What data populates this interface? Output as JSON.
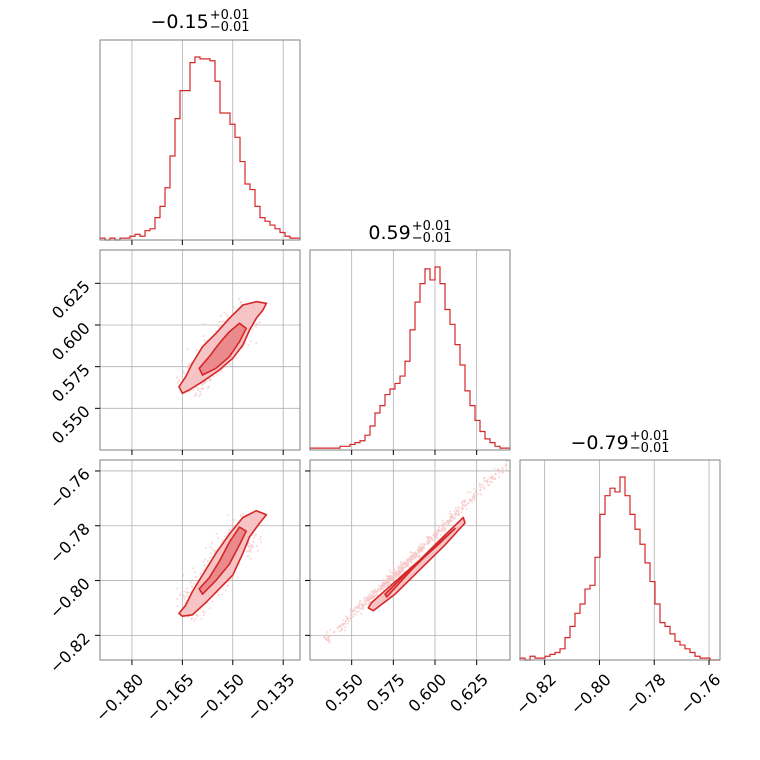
{
  "colors": {
    "main": "#d62728",
    "grid": "#b0b0b0",
    "frame": "#808080",
    "fill_light": "#f6c4c5",
    "fill_mid": "#eb8a8c"
  },
  "chart_data": {
    "type": "corner",
    "parameters": [
      {
        "median": "−0.15",
        "plus": "+0.01",
        "minus": "−0.01",
        "range": [
          -0.1895,
          -0.13
        ],
        "ticks": [
          -0.18,
          -0.165,
          -0.15,
          -0.135
        ],
        "tick_labels": [
          "−0.180",
          "−0.165",
          "−0.150",
          "−0.135"
        ]
      },
      {
        "median": "0.59",
        "plus": "+0.01",
        "minus": "−0.01",
        "range": [
          0.525,
          0.645
        ],
        "ticks": [
          0.55,
          0.575,
          0.6,
          0.625
        ],
        "tick_labels": [
          "0.550",
          "0.575",
          "0.600",
          "0.625"
        ]
      },
      {
        "median": "−0.79",
        "plus": "+0.01",
        "minus": "−0.01",
        "range": [
          -0.829,
          -0.756
        ],
        "ticks": [
          -0.82,
          -0.8,
          -0.78,
          -0.76
        ],
        "tick_labels": [
          "−0.82",
          "−0.80",
          "−0.78",
          "−0.76"
        ]
      }
    ],
    "histograms": [
      {
        "param": 0,
        "counts": [
          1,
          0,
          1,
          0,
          1,
          1,
          2,
          3,
          2,
          5,
          6,
          12,
          18,
          28,
          45,
          65,
          80,
          80,
          95,
          98,
          97,
          97,
          96,
          85,
          68,
          68,
          62,
          55,
          42,
          30,
          27,
          18,
          12,
          10,
          8,
          6,
          4,
          2,
          1,
          1
        ]
      },
      {
        "param": 1,
        "counts": [
          1,
          1,
          1,
          1,
          1,
          1,
          2,
          2,
          3,
          4,
          5,
          8,
          13,
          20,
          24,
          30,
          33,
          36,
          40,
          48,
          65,
          80,
          90,
          98,
          92,
          99,
          90,
          76,
          68,
          57,
          46,
          32,
          24,
          16,
          10,
          6,
          4,
          2,
          1,
          1
        ]
      },
      {
        "param": 2,
        "counts": [
          1,
          0,
          2,
          1,
          1,
          2,
          3,
          4,
          6,
          12,
          18,
          25,
          30,
          38,
          40,
          55,
          78,
          88,
          92,
          90,
          98,
          88,
          78,
          70,
          62,
          52,
          42,
          30,
          20,
          18,
          14,
          10,
          8,
          6,
          4,
          2,
          1,
          1,
          0,
          0
        ]
      }
    ],
    "scatter_2d": [
      {
        "x_param": 0,
        "y_param": 1,
        "ridge": [
          [
            -0.1635,
            0.561
          ],
          [
            -0.1545,
            0.583
          ],
          [
            -0.1445,
            0.61
          ]
        ],
        "widths": [
          0.005,
          0.007,
          0.008
        ],
        "outer_contour": [
          [
            -0.165,
            0.559
          ],
          [
            -0.163,
            0.561
          ],
          [
            -0.159,
            0.566
          ],
          [
            -0.154,
            0.573
          ],
          [
            -0.15,
            0.58
          ],
          [
            -0.147,
            0.588
          ],
          [
            -0.145,
            0.597
          ],
          [
            -0.143,
            0.604
          ],
          [
            -0.141,
            0.609
          ],
          [
            -0.14,
            0.613
          ],
          [
            -0.143,
            0.614
          ],
          [
            -0.147,
            0.612
          ],
          [
            -0.151,
            0.604
          ],
          [
            -0.155,
            0.595
          ],
          [
            -0.159,
            0.587
          ],
          [
            -0.162,
            0.577
          ],
          [
            -0.164,
            0.569
          ],
          [
            -0.166,
            0.563
          ]
        ],
        "inner_contour": [
          [
            -0.159,
            0.57
          ],
          [
            -0.155,
            0.574
          ],
          [
            -0.151,
            0.581
          ],
          [
            -0.148,
            0.59
          ],
          [
            -0.146,
            0.598
          ],
          [
            -0.148,
            0.601
          ],
          [
            -0.151,
            0.596
          ],
          [
            -0.154,
            0.589
          ],
          [
            -0.157,
            0.581
          ],
          [
            -0.16,
            0.574
          ]
        ]
      },
      {
        "x_param": 0,
        "y_param": 2,
        "ridge": [
          [
            -0.1645,
            -0.812
          ],
          [
            -0.154,
            -0.796
          ],
          [
            -0.144,
            -0.778
          ]
        ],
        "widths": [
          0.005,
          0.007,
          0.008
        ],
        "outer_contour": [
          [
            -0.165,
            -0.813
          ],
          [
            -0.162,
            -0.8125
          ],
          [
            -0.158,
            -0.808
          ],
          [
            -0.154,
            -0.803
          ],
          [
            -0.15,
            -0.798
          ],
          [
            -0.147,
            -0.79
          ],
          [
            -0.145,
            -0.784
          ],
          [
            -0.142,
            -0.779
          ],
          [
            -0.14,
            -0.776
          ],
          [
            -0.143,
            -0.7745
          ],
          [
            -0.147,
            -0.777
          ],
          [
            -0.151,
            -0.783
          ],
          [
            -0.155,
            -0.79
          ],
          [
            -0.159,
            -0.798
          ],
          [
            -0.162,
            -0.804
          ],
          [
            -0.164,
            -0.809
          ],
          [
            -0.166,
            -0.812
          ]
        ],
        "inner_contour": [
          [
            -0.159,
            -0.805
          ],
          [
            -0.155,
            -0.8
          ],
          [
            -0.151,
            -0.794
          ],
          [
            -0.148,
            -0.787
          ],
          [
            -0.146,
            -0.782
          ],
          [
            -0.148,
            -0.7805
          ],
          [
            -0.151,
            -0.786
          ],
          [
            -0.154,
            -0.793
          ],
          [
            -0.157,
            -0.799
          ],
          [
            -0.16,
            -0.803
          ]
        ]
      },
      {
        "x_param": 1,
        "y_param": 2,
        "ridge": [
          [
            0.535,
            -0.8215
          ],
          [
            0.585,
            -0.7925
          ],
          [
            0.645,
            -0.7555
          ]
        ],
        "widths": [
          0.003,
          0.003,
          0.003
        ],
        "outer_contour": [
          [
            0.562,
            -0.808
          ],
          [
            0.575,
            -0.801
          ],
          [
            0.59,
            -0.793
          ],
          [
            0.605,
            -0.784
          ],
          [
            0.617,
            -0.777
          ],
          [
            0.618,
            -0.779
          ],
          [
            0.606,
            -0.787
          ],
          [
            0.591,
            -0.796
          ],
          [
            0.576,
            -0.805
          ],
          [
            0.563,
            -0.811
          ],
          [
            0.56,
            -0.81
          ]
        ],
        "inner_contour": [
          [
            0.57,
            -0.805
          ],
          [
            0.585,
            -0.796
          ],
          [
            0.6,
            -0.788
          ],
          [
            0.612,
            -0.781
          ],
          [
            0.601,
            -0.787
          ],
          [
            0.586,
            -0.796
          ],
          [
            0.571,
            -0.806
          ]
        ]
      }
    ],
    "grid": true
  }
}
